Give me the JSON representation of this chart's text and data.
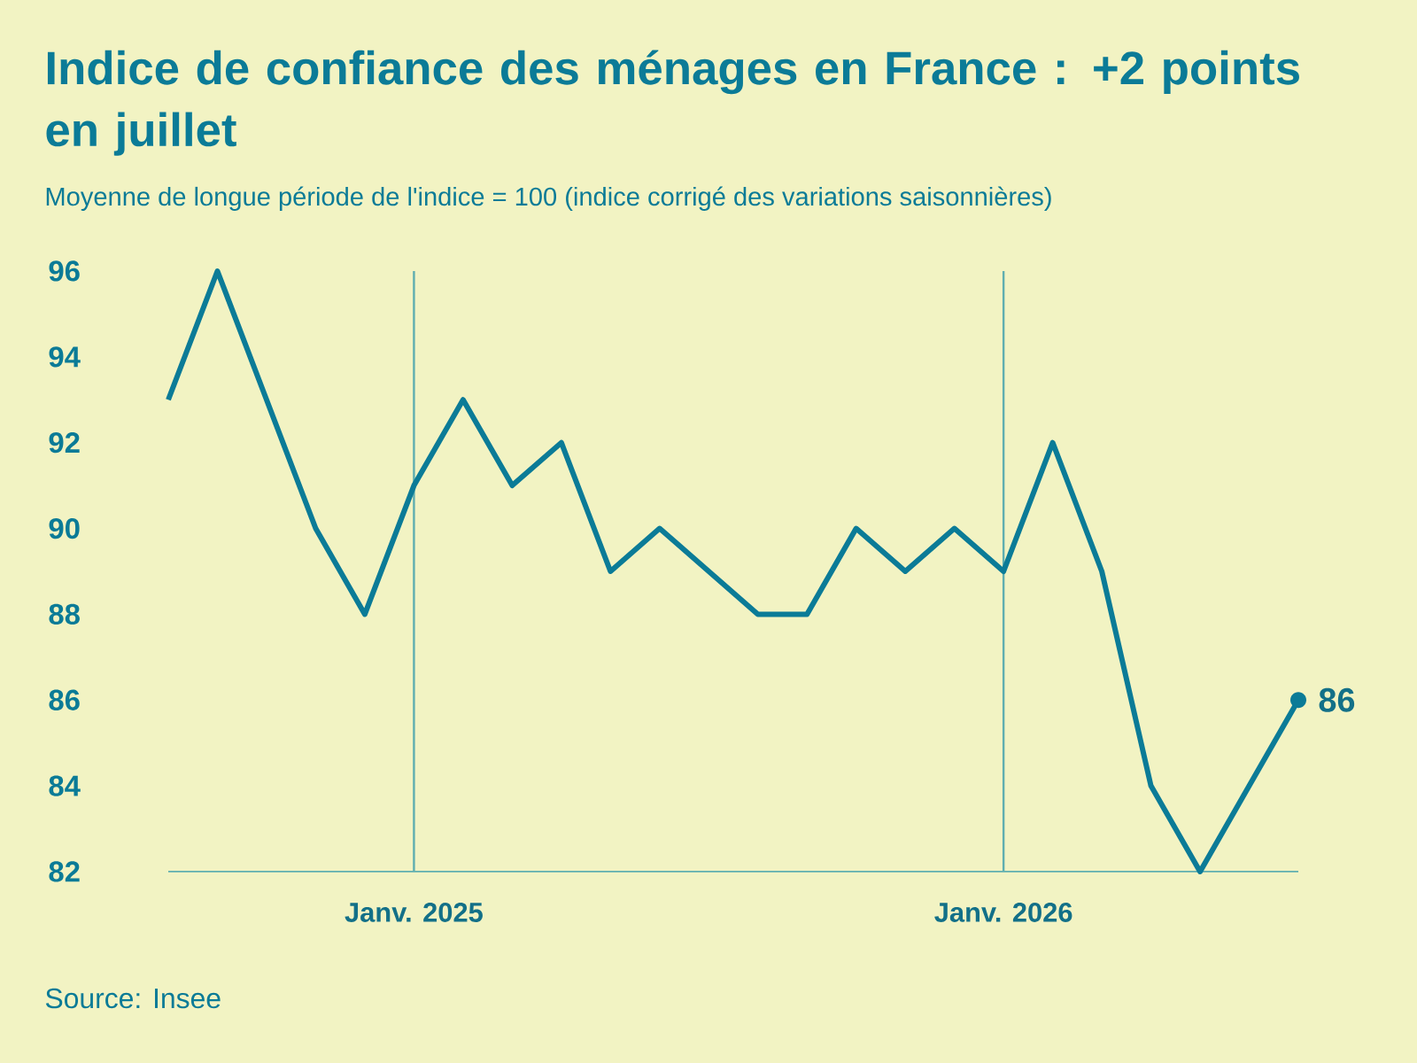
{
  "chart_data": {
    "type": "line",
    "title": "Indice de confiance des ménages en France : +2 points en juillet",
    "subtitle": "Moyenne de longue période de l'indice = 100 (indice corrigé des variations saisonnières)",
    "x": [
      "2024-08",
      "2024-09",
      "2024-10",
      "2024-11",
      "2024-12",
      "2025-01",
      "2025-02",
      "2025-03",
      "2025-04",
      "2025-05",
      "2025-06",
      "2025-07",
      "2025-08",
      "2025-09",
      "2025-10",
      "2025-11",
      "2025-12",
      "2026-01",
      "2026-02",
      "2026-03",
      "2026-04",
      "2026-05",
      "2026-06",
      "2026-07"
    ],
    "values": [
      93,
      96,
      93,
      90,
      88,
      91,
      93,
      91,
      92,
      89,
      90,
      89,
      88,
      88,
      90,
      89,
      90,
      89,
      92,
      89,
      84,
      82,
      84,
      86
    ],
    "color": "#0b7b97",
    "xlim": [
      "2024-08",
      "2026-07"
    ],
    "xticks": [
      {
        "value": "2025-01",
        "label": "Janv. 2025"
      },
      {
        "value": "2026-01",
        "label": "Janv. 2026"
      }
    ],
    "ylim": [
      82,
      96
    ],
    "yticks": [
      82,
      84,
      86,
      88,
      90,
      92,
      94,
      96
    ],
    "grid": "x",
    "annotations": [
      "Source: Insee",
      {
        "text": "86",
        "x": "2026-07",
        "y": 86
      }
    ]
  }
}
